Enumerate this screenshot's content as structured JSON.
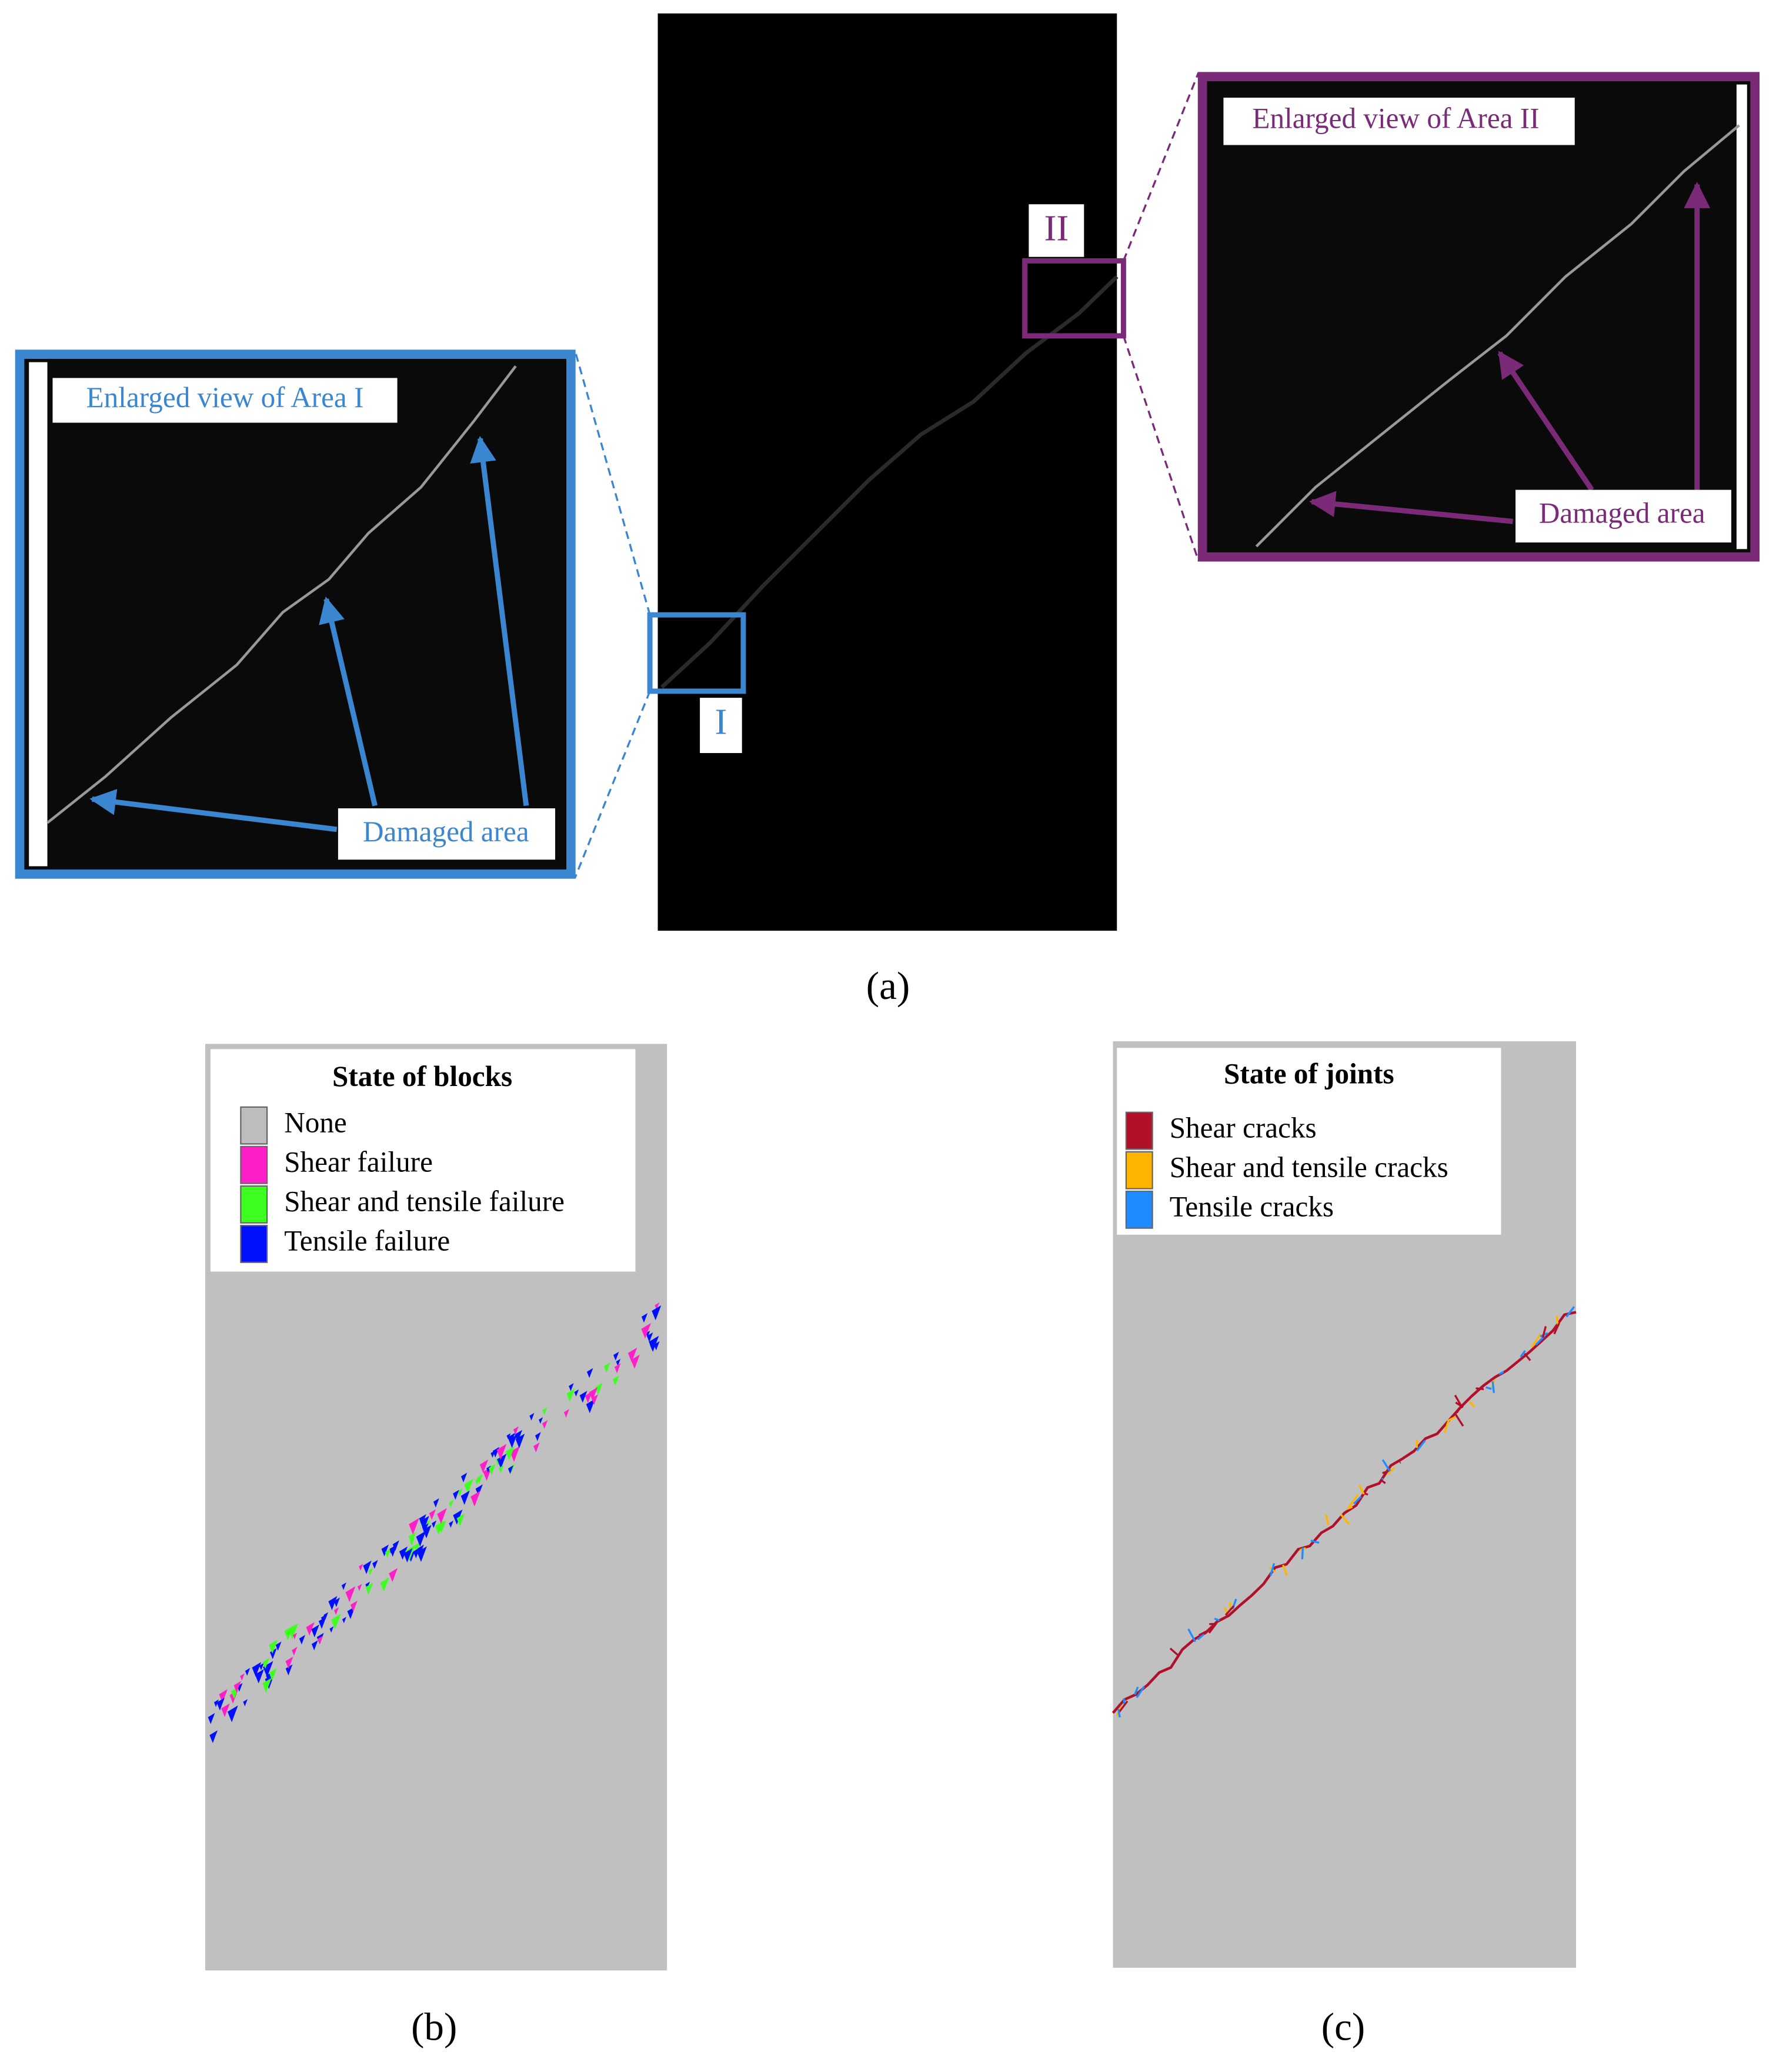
{
  "panel_a": {
    "label": "(a)",
    "area_1": {
      "marker": "I",
      "title": "Enlarged view of Area I",
      "annotation": "Damaged area"
    },
    "area_2": {
      "marker": "II",
      "title": "Enlarged view of Area II",
      "annotation": "Damaged area"
    }
  },
  "panel_b": {
    "label": "(b)",
    "legend": {
      "title": "State of blocks",
      "items": [
        "None",
        "Shear failure",
        "Shear and tensile failure",
        "Tensile failure"
      ]
    }
  },
  "panel_c": {
    "label": "(c)",
    "legend": {
      "title": "State of joints",
      "items": [
        "Shear cracks",
        "Shear and tensile cracks",
        "Tensile cracks"
      ]
    }
  }
}
